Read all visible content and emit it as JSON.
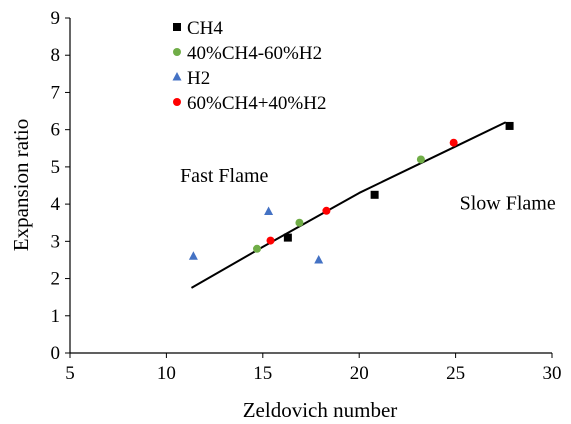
{
  "chart_data": {
    "type": "scatter",
    "xlabel": "Zeldovich number",
    "ylabel": "Expansion ratio",
    "xlim": [
      5,
      30
    ],
    "ylim": [
      0,
      9
    ],
    "xticks": [
      5,
      10,
      15,
      20,
      25,
      30
    ],
    "yticks": [
      0,
      1,
      2,
      3,
      4,
      5,
      6,
      7,
      8,
      9
    ],
    "grid": false,
    "legend_position": "top-left",
    "series": [
      {
        "name": "CH4",
        "marker": "square",
        "color": "#000000",
        "points": [
          [
            16.3,
            3.1
          ],
          [
            20.8,
            4.25
          ],
          [
            27.8,
            6.1
          ]
        ]
      },
      {
        "name": "40%CH4-60%H2",
        "marker": "circle",
        "color": "#70ad47",
        "points": [
          [
            14.7,
            2.8
          ],
          [
            16.9,
            3.5
          ],
          [
            23.2,
            5.2
          ]
        ]
      },
      {
        "name": "H2",
        "marker": "triangle",
        "color": "#4472c4",
        "points": [
          [
            11.4,
            2.6
          ],
          [
            15.3,
            3.8
          ],
          [
            17.9,
            2.5
          ]
        ]
      },
      {
        "name": "60%CH4+40%H2",
        "marker": "circle",
        "color": "#ff0000",
        "points": [
          [
            15.4,
            3.02
          ],
          [
            18.3,
            3.82
          ],
          [
            24.9,
            5.65
          ]
        ]
      }
    ],
    "trendline": {
      "color": "#000000",
      "points": [
        [
          11.3,
          1.75
        ],
        [
          15,
          2.85
        ],
        [
          20,
          4.3
        ],
        [
          25,
          5.55
        ],
        [
          27.6,
          6.2
        ]
      ]
    },
    "annotations": [
      {
        "text": "Fast Flame",
        "x": 13.0,
        "y": 4.6
      },
      {
        "text": "Slow Flame",
        "x": 27.7,
        "y": 3.85
      }
    ]
  }
}
